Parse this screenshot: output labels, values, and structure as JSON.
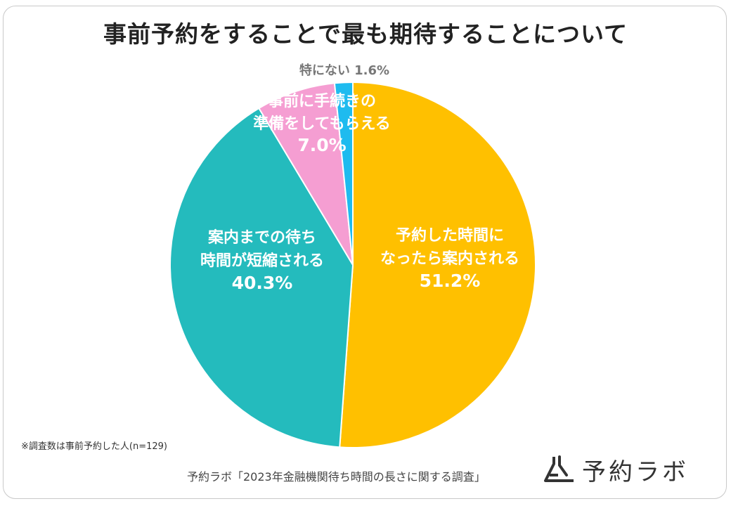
{
  "chart_data": {
    "type": "pie",
    "title": "事前予約をすることで最も期待することについて",
    "slices": [
      {
        "label_lines": [
          "予約した時間に",
          "なったら案内される"
        ],
        "value": 51.2,
        "value_label": "51.2%",
        "color": "#FFC000"
      },
      {
        "label_lines": [
          "案内までの待ち",
          "時間が短縮される"
        ],
        "value": 40.3,
        "value_label": "40.3%",
        "color": "#24BBBD"
      },
      {
        "label_lines": [
          "事前に手続きの",
          "準備をしてもらえる"
        ],
        "value": 7.0,
        "value_label": "7.0%",
        "color": "#F59ED2"
      },
      {
        "label_lines": [
          "特にない"
        ],
        "value": 1.6,
        "value_label": "1.6%",
        "color": "#1EBBEF"
      }
    ]
  },
  "note": "※調査数は事前予約した人(n=129)",
  "source": "予約ラボ「2023年金融機関待ち時間の長さに関する調査」",
  "logo": {
    "text": "予約ラボ",
    "icon": "flask-icon"
  }
}
